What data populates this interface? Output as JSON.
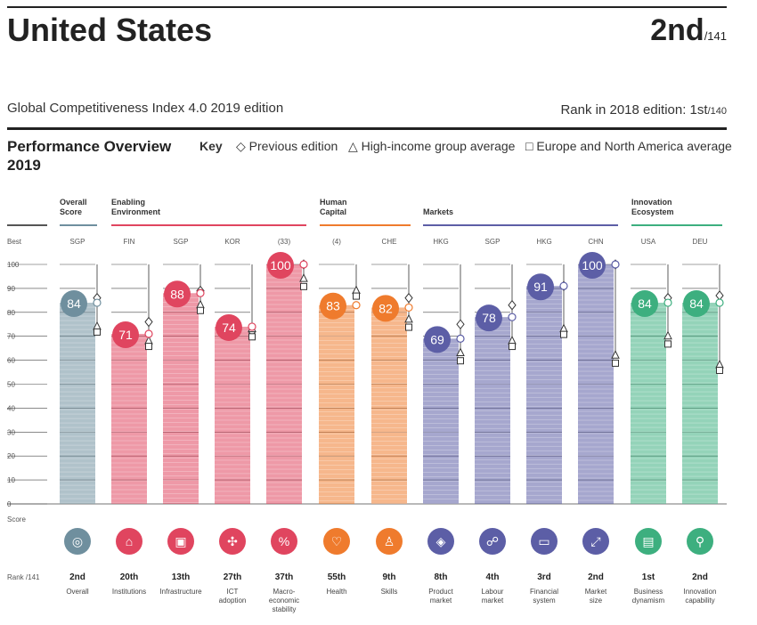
{
  "header": {
    "country": "United States",
    "rank": "2nd",
    "rank_of": "/141",
    "subtitle": "Global Competitiveness Index 4.0 2019 edition",
    "prev_rank_label": "Rank in 2018 edition: 1st",
    "prev_rank_of": "/140"
  },
  "overview": {
    "title_line1": "Performance Overview",
    "title_line2": "2019",
    "key_label": "Key",
    "key_prev": "Previous edition",
    "key_hi": "High-income group average",
    "key_eur": "Europe and North America average"
  },
  "group_labels": {
    "overall": [
      "Overall",
      "Score"
    ],
    "enabling": [
      "Enabling",
      "Environment"
    ],
    "human": [
      "Human",
      "Capital"
    ],
    "markets": [
      "Markets"
    ],
    "innovation": [
      "Innovation",
      "Ecosystem"
    ]
  },
  "axis": {
    "best_label": "Best",
    "score_label": "Score",
    "rank_label": "Rank /141"
  },
  "colors": {
    "overall": "#6f8f9e",
    "enabling": "#e0455f",
    "human": "#ef7b2d",
    "markets": "#5c5ea6",
    "innovation": "#3daf7f"
  },
  "chart_data": {
    "type": "bar",
    "ylim": [
      0,
      100
    ],
    "yticks": [
      0,
      10,
      20,
      30,
      40,
      50,
      60,
      70,
      80,
      90,
      100
    ],
    "categories": [
      "Overall",
      "Institutions",
      "Infrastructure",
      "ICT adoption",
      "Macro-economic stability",
      "Health",
      "Skills",
      "Product market",
      "Labour market",
      "Financial system",
      "Market size",
      "Business dynamism",
      "Innovation capability"
    ],
    "pillars": [
      {
        "group": "overall",
        "best": "SGP",
        "value": 84,
        "prev": 86,
        "hi": 74,
        "eur": 74,
        "rank": "2nd",
        "label": [
          "Overall"
        ],
        "icon": "overall-icon",
        "glyph": "◎"
      },
      {
        "group": "enabling",
        "best": "FIN",
        "value": 71,
        "prev": 76,
        "hi": 68,
        "eur": 68,
        "rank": "20th",
        "label": [
          "Institutions"
        ],
        "icon": "institutions-icon",
        "glyph": "⌂"
      },
      {
        "group": "enabling",
        "best": "SGP",
        "value": 88,
        "prev": 89,
        "hi": 83,
        "eur": 83,
        "rank": "13th",
        "label": [
          "Infrastructure"
        ],
        "icon": "infrastructure-icon",
        "glyph": "▣"
      },
      {
        "group": "enabling",
        "best": "KOR",
        "value": 74,
        "prev": 72,
        "hi": 73,
        "eur": 72,
        "rank": "27th",
        "label": [
          "ICT",
          "adoption"
        ],
        "icon": "ict-icon",
        "glyph": "✣"
      },
      {
        "group": "enabling",
        "best": "(33)",
        "value": 100,
        "prev": 100,
        "hi": 94,
        "eur": 93,
        "rank": "37th",
        "label": [
          "Macro-",
          "economic",
          "stability"
        ],
        "icon": "macro-icon",
        "glyph": "%"
      },
      {
        "group": "human",
        "best": "(4)",
        "value": 83,
        "prev": 88,
        "hi": 89,
        "eur": 89,
        "rank": "55th",
        "label": [
          "Health"
        ],
        "icon": "health-icon",
        "glyph": "♡"
      },
      {
        "group": "human",
        "best": "CHE",
        "value": 82,
        "prev": 86,
        "hi": 77,
        "eur": 76,
        "rank": "9th",
        "label": [
          "Skills"
        ],
        "icon": "skills-icon",
        "glyph": "♙"
      },
      {
        "group": "markets",
        "best": "HKG",
        "value": 69,
        "prev": 75,
        "hi": 63,
        "eur": 62,
        "rank": "8th",
        "label": [
          "Product",
          "market"
        ],
        "icon": "product-market-icon",
        "glyph": "◈"
      },
      {
        "group": "markets",
        "best": "SGP",
        "value": 78,
        "prev": 83,
        "hi": 68,
        "eur": 68,
        "rank": "4th",
        "label": [
          "Labour",
          "market"
        ],
        "icon": "labour-market-icon",
        "glyph": "☍"
      },
      {
        "group": "markets",
        "best": "HKG",
        "value": 91,
        "prev": 91,
        "hi": 73,
        "eur": 73,
        "rank": "3rd",
        "label": [
          "Financial",
          "system"
        ],
        "icon": "financial-system-icon",
        "glyph": "▭"
      },
      {
        "group": "markets",
        "best": "CHN",
        "value": 100,
        "prev": 100,
        "hi": 62,
        "eur": 61,
        "rank": "2nd",
        "label": [
          "Market",
          "size"
        ],
        "icon": "market-size-icon",
        "glyph": "⤢"
      },
      {
        "group": "innovation",
        "best": "USA",
        "value": 84,
        "prev": 86,
        "hi": 70,
        "eur": 69,
        "rank": "1st",
        "label": [
          "Business",
          "dynamism"
        ],
        "icon": "business-dynamism-icon",
        "glyph": "▤"
      },
      {
        "group": "innovation",
        "best": "DEU",
        "value": 84,
        "prev": 87,
        "hi": 58,
        "eur": 58,
        "rank": "2nd",
        "label": [
          "Innovation",
          "capability"
        ],
        "icon": "innovation-icon",
        "glyph": "⚲"
      }
    ]
  }
}
